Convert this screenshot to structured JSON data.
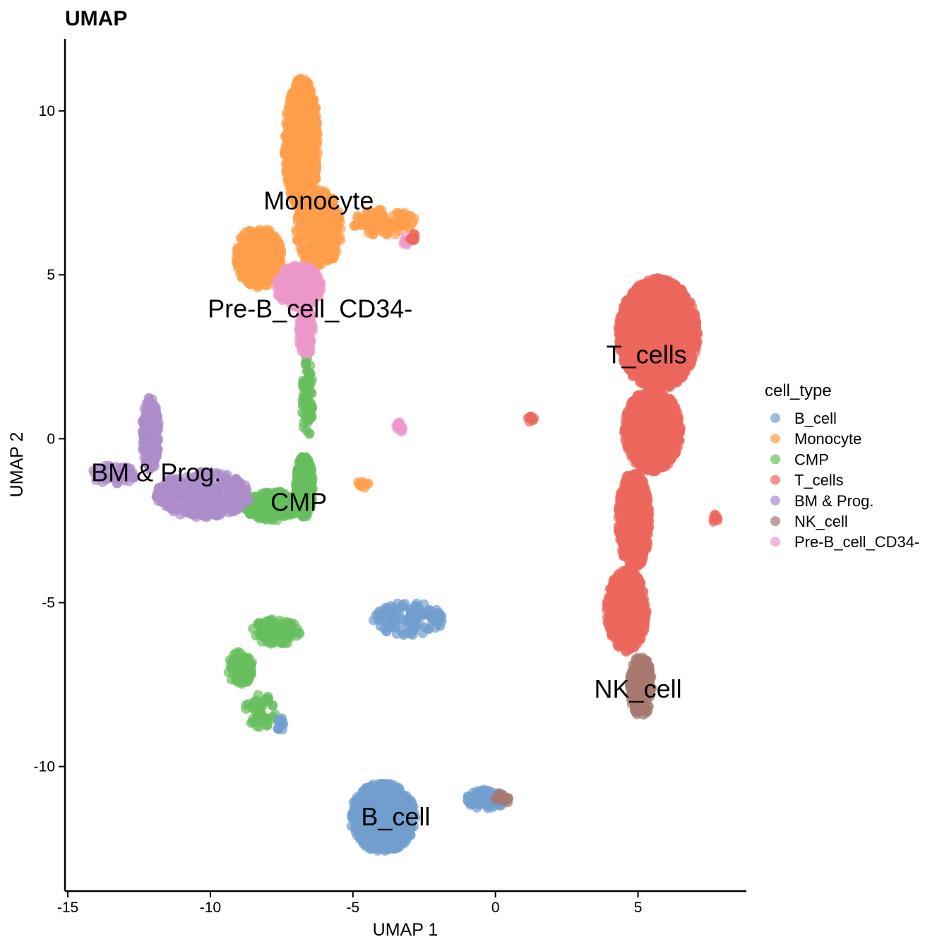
{
  "chart_data": {
    "type": "scatter",
    "title": "UMAP",
    "xlabel": "UMAP 1",
    "ylabel": "UMAP 2",
    "xlim": [
      -15.1,
      8.8
    ],
    "ylim": [
      -13.8,
      12.2
    ],
    "xticks": [
      -15,
      -10,
      -5,
      0,
      5
    ],
    "yticks": [
      -10,
      -5,
      0,
      5,
      10
    ],
    "grid": false,
    "legend": {
      "title": "cell_type",
      "placement": "right"
    },
    "series": [
      {
        "name": "B_cell",
        "color": "#729ECE"
      },
      {
        "name": "Monocyte",
        "color": "#FF9E4A"
      },
      {
        "name": "CMP",
        "color": "#67BF5C"
      },
      {
        "name": "T_cells",
        "color": "#ED665D"
      },
      {
        "name": "BM & Prog.",
        "color": "#AD8BC9"
      },
      {
        "name": "NK_cell",
        "color": "#A8786E"
      },
      {
        "name": "Pre-B_cell_CD34-",
        "color": "#ED97CA"
      }
    ],
    "clusters": [
      {
        "type": "B_cell",
        "x": [
          -5.1,
          -2.8
        ],
        "y": [
          -12.6,
          -10.5
        ],
        "n": 700
      },
      {
        "type": "B_cell",
        "x": [
          -4.3,
          -1.8
        ],
        "y": [
          -6.0,
          -5.0
        ],
        "n": 120
      },
      {
        "type": "B_cell",
        "x": [
          -1.0,
          0.4
        ],
        "y": [
          -11.3,
          -10.7
        ],
        "n": 80
      },
      {
        "type": "B_cell",
        "x": [
          -7.7,
          -7.4
        ],
        "y": [
          -8.9,
          -8.5
        ],
        "n": 12
      },
      {
        "type": "Monocyte",
        "x": [
          -7.4,
          -6.2
        ],
        "y": [
          7.0,
          11.0
        ],
        "n": 650
      },
      {
        "type": "Monocyte",
        "x": [
          -7.0,
          -5.4
        ],
        "y": [
          5.2,
          7.6
        ],
        "n": 350
      },
      {
        "type": "Monocyte",
        "x": [
          -9.1,
          -7.5
        ],
        "y": [
          4.6,
          6.5
        ],
        "n": 280
      },
      {
        "type": "Monocyte",
        "x": [
          -5.0,
          -2.8
        ],
        "y": [
          6.2,
          7.0
        ],
        "n": 100
      },
      {
        "type": "Monocyte",
        "x": [
          -4.9,
          -4.4
        ],
        "y": [
          -1.5,
          -1.3
        ],
        "n": 10
      },
      {
        "type": "Pre-B_cell_CD34-",
        "x": [
          -7.7,
          -6.1
        ],
        "y": [
          4.0,
          5.3
        ],
        "n": 280
      },
      {
        "type": "Pre-B_cell_CD34-",
        "x": [
          -6.9,
          -6.4
        ],
        "y": [
          2.5,
          4.0
        ],
        "n": 120
      },
      {
        "type": "Pre-B_cell_CD34-",
        "x": [
          -3.5,
          -3.2
        ],
        "y": [
          0.2,
          0.5
        ],
        "n": 12
      },
      {
        "type": "Pre-B_cell_CD34-",
        "x": [
          -3.3,
          -2.9
        ],
        "y": [
          5.9,
          6.2
        ],
        "n": 10
      },
      {
        "type": "CMP",
        "x": [
          -7.0,
          -6.4
        ],
        "y": [
          -2.4,
          -0.5
        ],
        "n": 320
      },
      {
        "type": "CMP",
        "x": [
          -8.8,
          -6.8
        ],
        "y": [
          -2.5,
          -1.6
        ],
        "n": 220
      },
      {
        "type": "CMP",
        "x": [
          -6.8,
          -6.4
        ],
        "y": [
          0.0,
          2.5
        ],
        "n": 70
      },
      {
        "type": "CMP",
        "x": [
          -9.4,
          -8.5
        ],
        "y": [
          -7.5,
          -6.5
        ],
        "n": 90
      },
      {
        "type": "CMP",
        "x": [
          -8.6,
          -6.8
        ],
        "y": [
          -6.3,
          -5.5
        ],
        "n": 90
      },
      {
        "type": "CMP",
        "x": [
          -8.8,
          -7.7
        ],
        "y": [
          -8.8,
          -7.8
        ],
        "n": 45
      },
      {
        "type": "BM & Prog.",
        "x": [
          -12.4,
          -11.8
        ],
        "y": [
          -1.0,
          1.3
        ],
        "n": 160
      },
      {
        "type": "BM & Prog.",
        "x": [
          -11.9,
          -8.6
        ],
        "y": [
          -2.4,
          -1.0
        ],
        "n": 330
      },
      {
        "type": "BM & Prog.",
        "x": [
          -14.2,
          -12.6
        ],
        "y": [
          -1.4,
          -0.8
        ],
        "n": 45
      },
      {
        "type": "T_cells",
        "x": [
          4.3,
          7.1
        ],
        "y": [
          1.5,
          4.9
        ],
        "n": 1800
      },
      {
        "type": "T_cells",
        "x": [
          4.5,
          6.5
        ],
        "y": [
          -1.0,
          1.5
        ],
        "n": 800
      },
      {
        "type": "T_cells",
        "x": [
          4.3,
          5.4
        ],
        "y": [
          -4.0,
          -1.0
        ],
        "n": 600
      },
      {
        "type": "T_cells",
        "x": [
          3.9,
          5.3
        ],
        "y": [
          -6.5,
          -4.0
        ],
        "n": 600
      },
      {
        "type": "T_cells",
        "x": [
          1.1,
          1.4
        ],
        "y": [
          0.5,
          0.7
        ],
        "n": 10
      },
      {
        "type": "T_cells",
        "x": [
          -3.0,
          -2.7
        ],
        "y": [
          6.0,
          6.3
        ],
        "n": 10
      },
      {
        "type": "T_cells",
        "x": [
          7.6,
          7.8
        ],
        "y": [
          -2.6,
          -2.3
        ],
        "n": 8
      },
      {
        "type": "NK_cell",
        "x": [
          4.7,
          5.5
        ],
        "y": [
          -8.5,
          -6.6
        ],
        "n": 220
      },
      {
        "type": "NK_cell",
        "x": [
          0.0,
          0.5
        ],
        "y": [
          -11.2,
          -10.8
        ],
        "n": 12
      }
    ],
    "annotations": [
      {
        "text": "Monocyte",
        "x": -6.2,
        "y": 7.0
      },
      {
        "text": "Pre-B_cell_CD34-",
        "x": -6.5,
        "y": 3.7
      },
      {
        "text": "T_cells",
        "x": 5.3,
        "y": 2.3
      },
      {
        "text": "BM & Prog.",
        "x": -11.9,
        "y": -1.3
      },
      {
        "text": "CMP",
        "x": -6.9,
        "y": -2.2
      },
      {
        "text": "NK_cell",
        "x": 5.0,
        "y": -7.9
      },
      {
        "text": "B_cell",
        "x": -3.5,
        "y": -11.8
      }
    ]
  }
}
